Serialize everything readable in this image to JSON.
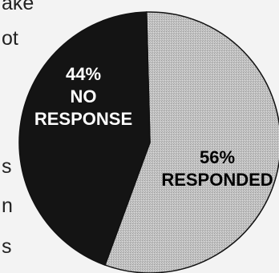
{
  "background_fragments": [
    {
      "id": "frag-ake",
      "text": "ake"
    },
    {
      "id": "frag-ot",
      "text": "ot"
    },
    {
      "id": "frag-s1",
      "text": "s"
    },
    {
      "id": "frag-n",
      "text": "n"
    },
    {
      "id": "frag-s2",
      "text": "s"
    }
  ],
  "colors": {
    "page_background": "#f3f3f3",
    "no_response_fill": "#141414",
    "responded_fill": "#c4c4c4",
    "no_response_text": "#ffffff",
    "responded_text": "#000000"
  },
  "chart_data": {
    "type": "pie",
    "slices": [
      {
        "label_lines": [
          "56%",
          "RESPONDED"
        ],
        "value": 56
      },
      {
        "label_lines": [
          "44%",
          "NO",
          "RESPONSE"
        ],
        "value": 44
      }
    ]
  }
}
